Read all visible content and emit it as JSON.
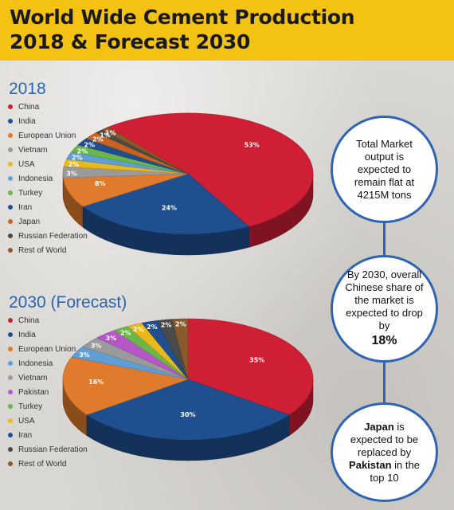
{
  "header": {
    "title_line1": "World Wide Cement Production",
    "title_line2": "2018 & Forecast 2030"
  },
  "chart_data": [
    {
      "type": "pie",
      "title": "2018",
      "categories": [
        "China",
        "India",
        "European Union",
        "Vietnam",
        "USA",
        "Indonesia",
        "Turkey",
        "Iran",
        "Japan",
        "Russian Federation",
        "Rest of World"
      ],
      "values": [
        53,
        24,
        8,
        3,
        2,
        2,
        2,
        2,
        2,
        1,
        1
      ],
      "labels": [
        "53%",
        "24%",
        "8%",
        "3%",
        "2%",
        "2%",
        "2%",
        "2%",
        "2%",
        "1%",
        "1%"
      ],
      "legend_labels": [
        "China",
        "India",
        "European Union",
        "Vietnam",
        "USA",
        "Indonesia",
        "Turkey",
        "Iran",
        "Japan",
        "Russian Federation",
        "Rest of World"
      ],
      "legend_placement": "left",
      "colors": [
        "#cf1f35",
        "#1f4f8f",
        "#e07a2c",
        "#9a9a9a",
        "#e8b81c",
        "#5f9fd8",
        "#6ab64a",
        "#1f4f8f",
        "#c7621f",
        "#4a4a4a",
        "#8a5a2b"
      ]
    },
    {
      "type": "pie",
      "title": "2030 (Forecast)",
      "categories": [
        "China",
        "India",
        "European Union",
        "Indonesia",
        "Vietnam",
        "Pakistan",
        "Turkey",
        "USA",
        "Iran",
        "Russian Federation",
        "Rest of World"
      ],
      "values": [
        35,
        30,
        16,
        3,
        3,
        3,
        2,
        2,
        2,
        2,
        2
      ],
      "labels": [
        "35%",
        "30%",
        "16%",
        "3%",
        "3%",
        "3%",
        "2%",
        "2%",
        "2%",
        "2%",
        "2%"
      ],
      "legend_labels": [
        "China",
        "India",
        "European Union",
        "Indonesia",
        "Vietnam",
        "Pakistan",
        "Turkey",
        "USA",
        "Iran",
        "Russian Federation",
        "Rest of World"
      ],
      "legend_placement": "left",
      "colors": [
        "#cf1f35",
        "#1f4f8f",
        "#e07a2c",
        "#5f9fd8",
        "#9a9a9a",
        "#b657c7",
        "#6ab64a",
        "#e8b81c",
        "#1f4f8f",
        "#4a4a4a",
        "#8a5a2b"
      ]
    }
  ],
  "callouts": {
    "c1": "Total Market output is expected to remain flat at 4215M tons",
    "c2_text": "By 2030, overall Chinese share of the market is expected to drop by",
    "c2_big": "18%",
    "c3_a": "Japan",
    "c3_b": " is expected to be replaced by ",
    "c3_c": "Pakistan",
    "c3_d": " in the top 10"
  }
}
